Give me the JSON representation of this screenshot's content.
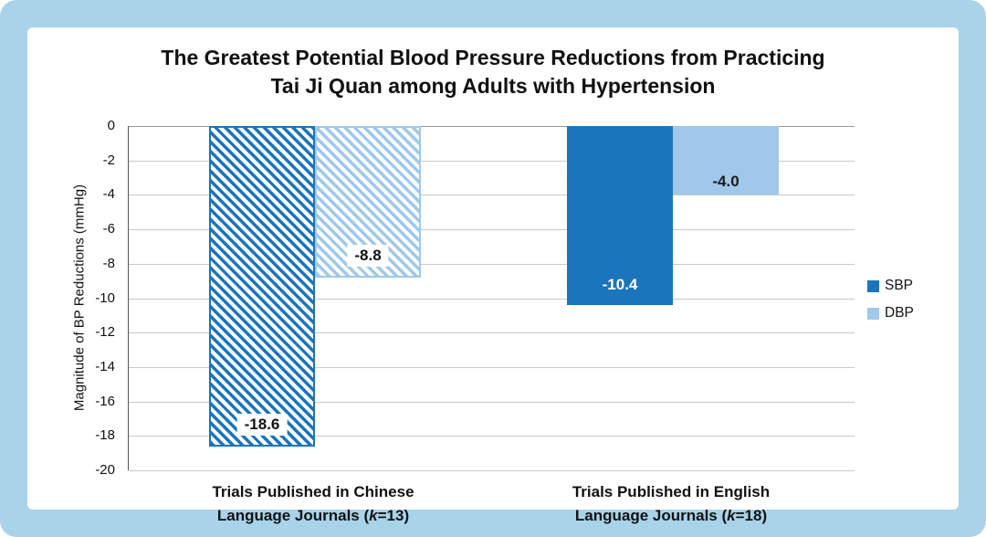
{
  "chart_data": {
    "type": "bar",
    "title_line1": "The Greatest Potential Blood Pressure Reductions from Practicing",
    "title_line2": "Tai Ji Quan among Adults with Hypertension",
    "ylabel": "Magnitude of BP Reductions (mmHg)",
    "ylim": [
      0,
      -20
    ],
    "yticks": [
      "0",
      "-2",
      "-4",
      "-6",
      "-8",
      "-10",
      "-12",
      "-14",
      "-16",
      "-18",
      "-20"
    ],
    "categories": [
      "Trials Published in Chinese Language Journals (k=13)",
      "Trials Published in English Language Journals (k=18)"
    ],
    "x_labels": [
      {
        "line1": "Trials Published in Chinese",
        "line2_pre": "Language Journals (",
        "k_symbol": "k",
        "line2_post": "=13)"
      },
      {
        "line1": "Trials Published in English",
        "line2_pre": "Language Journals (",
        "k_symbol": "k",
        "line2_post": "=18)"
      }
    ],
    "series": [
      {
        "name": "SBP",
        "values": [
          -18.6,
          -10.4
        ],
        "labels": [
          "-18.6",
          "-10.4"
        ],
        "color": "#1B75BC"
      },
      {
        "name": "DBP",
        "values": [
          -8.8,
          -4.0
        ],
        "labels": [
          "-8.8",
          "-4.0"
        ],
        "color": "#9FC8EA"
      }
    ],
    "hatched_category": "Trials Published in Chinese Language Journals (k=13)",
    "legend": {
      "position": "right",
      "entries": [
        "SBP",
        "DBP"
      ]
    },
    "colors": {
      "sbp": "#1B75BC",
      "dbp": "#9FC8EA",
      "frame_background": "#A9D3E9",
      "panel_background": "#FFFFFF",
      "gridline": "#C9C9C9"
    },
    "grid": "horizontal"
  }
}
